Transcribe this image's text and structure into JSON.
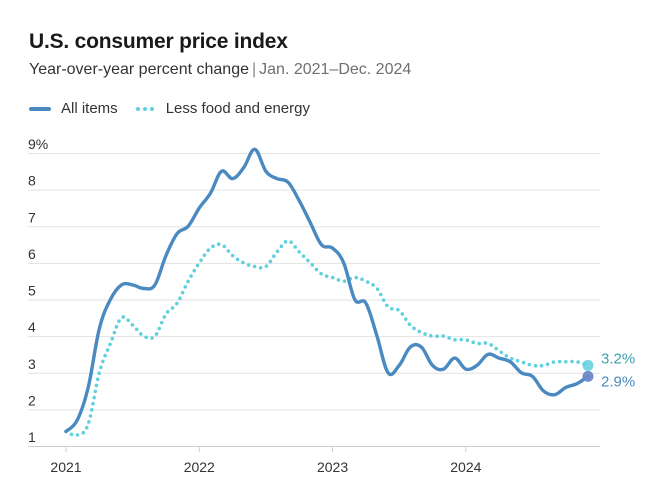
{
  "header": {
    "title": "U.S. consumer price index",
    "subtitle_main": "Year-over-year percent change",
    "subtitle_sep": "|",
    "subtitle_range": "Jan. 2021–Dec. 2024"
  },
  "colors": {
    "all_items": "#4a8ac0",
    "core": "#5fd0de",
    "grid": "#e2e2e2",
    "axis": "#cfcfcf",
    "tick_text": "#333333",
    "end_label_all": "#4a8ac0",
    "end_label_core": "#3f9fb0"
  },
  "chart_data": {
    "type": "line",
    "ylim": [
      1,
      9
    ],
    "y_ticks": [
      1,
      2,
      3,
      4,
      5,
      6,
      7,
      8,
      9
    ],
    "y_tick_labels": [
      "1",
      "2",
      "3",
      "4",
      "5",
      "6",
      "7",
      "8",
      "9%"
    ],
    "x_ticks": [
      2021,
      2022,
      2023,
      2024
    ],
    "x_tick_labels": [
      "2021",
      "2022",
      "2023",
      "2024"
    ],
    "x_range": [
      "2021-01",
      "2024-12"
    ],
    "grid": true,
    "legend_position": "top-left",
    "x": [
      "2021-01",
      "2021-02",
      "2021-03",
      "2021-04",
      "2021-05",
      "2021-06",
      "2021-07",
      "2021-08",
      "2021-09",
      "2021-10",
      "2021-11",
      "2021-12",
      "2022-01",
      "2022-02",
      "2022-03",
      "2022-04",
      "2022-05",
      "2022-06",
      "2022-07",
      "2022-08",
      "2022-09",
      "2022-10",
      "2022-11",
      "2022-12",
      "2023-01",
      "2023-02",
      "2023-03",
      "2023-04",
      "2023-05",
      "2023-06",
      "2023-07",
      "2023-08",
      "2023-09",
      "2023-10",
      "2023-11",
      "2023-12",
      "2024-01",
      "2024-02",
      "2024-03",
      "2024-04",
      "2024-05",
      "2024-06",
      "2024-07",
      "2024-08",
      "2024-09",
      "2024-10",
      "2024-11",
      "2024-12"
    ],
    "series": [
      {
        "name": "All items",
        "style": "solid",
        "values": [
          1.4,
          1.7,
          2.6,
          4.2,
          5.0,
          5.4,
          5.4,
          5.3,
          5.4,
          6.2,
          6.8,
          7.0,
          7.5,
          7.9,
          8.5,
          8.3,
          8.6,
          9.1,
          8.5,
          8.3,
          8.2,
          7.7,
          7.1,
          6.5,
          6.4,
          6.0,
          5.0,
          4.9,
          4.0,
          3.0,
          3.2,
          3.7,
          3.7,
          3.2,
          3.1,
          3.4,
          3.1,
          3.2,
          3.5,
          3.4,
          3.3,
          3.0,
          2.9,
          2.5,
          2.4,
          2.6,
          2.7,
          2.9
        ]
      },
      {
        "name": "Less food and energy",
        "style": "dotted",
        "values": [
          1.4,
          1.3,
          1.6,
          3.0,
          3.8,
          4.5,
          4.3,
          4.0,
          4.0,
          4.6,
          4.9,
          5.5,
          6.0,
          6.4,
          6.5,
          6.2,
          6.0,
          5.9,
          5.9,
          6.3,
          6.6,
          6.3,
          6.0,
          5.7,
          5.6,
          5.5,
          5.6,
          5.5,
          5.3,
          4.8,
          4.7,
          4.3,
          4.1,
          4.0,
          4.0,
          3.9,
          3.9,
          3.8,
          3.8,
          3.6,
          3.4,
          3.3,
          3.2,
          3.2,
          3.3,
          3.3,
          3.3,
          3.2
        ]
      }
    ],
    "end_labels": [
      "3.2%",
      "2.9%"
    ]
  }
}
